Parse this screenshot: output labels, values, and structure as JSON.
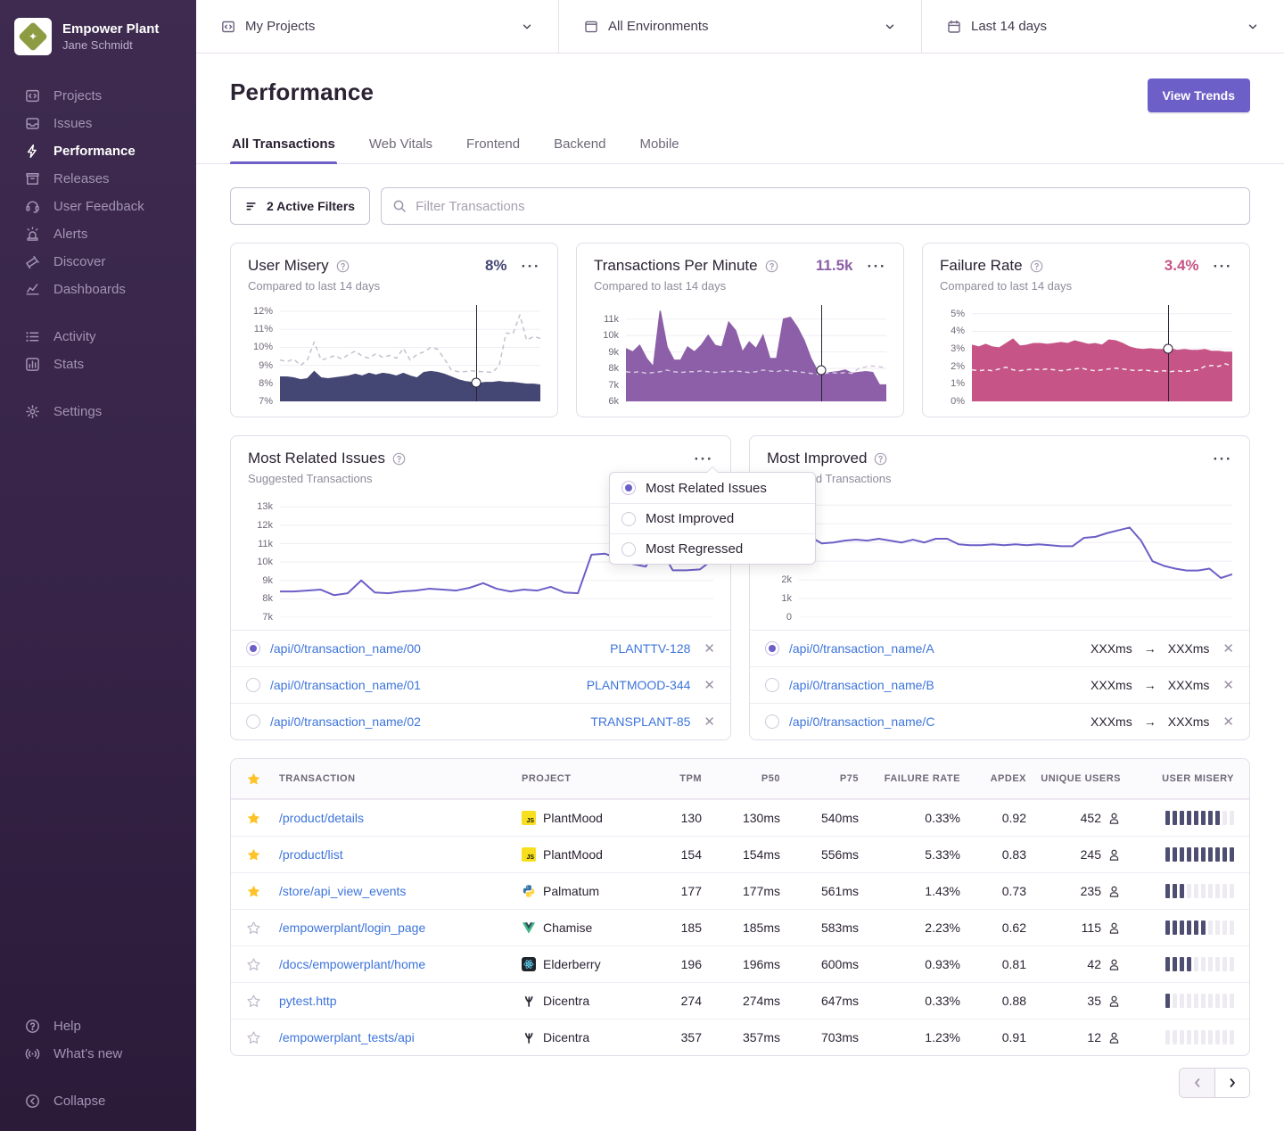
{
  "sidebar": {
    "org": "Empower Plant",
    "user": "Jane Schmidt",
    "sections": [
      [
        {
          "id": "projects",
          "label": "Projects"
        },
        {
          "id": "issues",
          "label": "Issues"
        },
        {
          "id": "performance",
          "label": "Performance",
          "active": true
        },
        {
          "id": "releases",
          "label": "Releases"
        },
        {
          "id": "feedback",
          "label": "User Feedback"
        },
        {
          "id": "alerts",
          "label": "Alerts"
        },
        {
          "id": "discover",
          "label": "Discover"
        },
        {
          "id": "dashboards",
          "label": "Dashboards"
        }
      ],
      [
        {
          "id": "activity",
          "label": "Activity"
        },
        {
          "id": "stats",
          "label": "Stats"
        }
      ],
      [
        {
          "id": "settings",
          "label": "Settings"
        }
      ]
    ],
    "footer": [
      {
        "id": "help",
        "label": "Help"
      },
      {
        "id": "whatsnew",
        "label": "What’s new"
      }
    ],
    "collapse": {
      "id": "collapse",
      "label": "Collapse"
    }
  },
  "topbar": {
    "projects": "My Projects",
    "environments": "All Environments",
    "daterange": "Last 14 days"
  },
  "header": {
    "title": "Performance",
    "view_trends": "View Trends",
    "tabs": [
      "All Transactions",
      "Web Vitals",
      "Frontend",
      "Backend",
      "Mobile"
    ],
    "active_tab": 0
  },
  "filters": {
    "active_filters": "2 Active Filters",
    "search_placeholder": "Filter Transactions"
  },
  "colors": {
    "accent": "#6C5FC7",
    "link": "#3D74DB",
    "misery": "#444674",
    "tpm": "#8C5FA8",
    "failure": "#C65486",
    "mis_dash": "#C6C0CF",
    "tpm_dash": "#D3C7DE",
    "fail_dash": "#F3ECF2"
  },
  "chart_data": {
    "metric_cards": [
      {
        "type": "area",
        "title": "User Misery",
        "value": "8%",
        "subtitle": "Compared to last 14 days",
        "value_color": "#444674",
        "color": "#444674",
        "dash_color": "#C6C0CF",
        "ylim": [
          7,
          12.35
        ],
        "yticks": [
          {
            "v": 12,
            "l": "12%"
          },
          {
            "v": 11,
            "l": "11%"
          },
          {
            "v": 10,
            "l": "10%"
          },
          {
            "v": 9,
            "l": "9%"
          },
          {
            "v": 8,
            "l": "8%"
          },
          {
            "v": 7,
            "l": "7%"
          }
        ],
        "area": [
          8.35,
          8.35,
          8.3,
          8.2,
          8.25,
          8.65,
          8.3,
          8.25,
          8.3,
          8.35,
          8.4,
          8.5,
          8.4,
          8.55,
          8.45,
          8.55,
          8.5,
          8.4,
          8.55,
          8.4,
          8.3,
          8.6,
          8.65,
          8.6,
          8.5,
          8.35,
          8.2,
          8.1,
          8.05,
          8.0,
          8.05,
          8.05,
          8.1,
          8.05,
          8.05,
          8.0,
          7.95,
          7.95,
          7.9
        ],
        "dash": [
          9.3,
          9.2,
          9.35,
          9.0,
          9.3,
          10.3,
          9.3,
          9.4,
          9.55,
          9.35,
          9.6,
          9.8,
          9.5,
          9.4,
          9.65,
          9.45,
          9.55,
          9.4,
          9.95,
          9.3,
          9.6,
          9.75,
          10.0,
          9.9,
          9.35,
          8.75,
          8.65,
          8.65,
          8.7,
          8.65,
          8.65,
          8.6,
          9.0,
          10.8,
          10.75,
          11.8,
          10.4,
          10.6,
          10.5
        ],
        "marker": {
          "x": 0.755,
          "value": 8.05
        }
      },
      {
        "type": "area",
        "title": "Transactions Per Minute",
        "value": "11.5k",
        "subtitle": "Compared to last 14 days",
        "value_color": "#8C5FA8",
        "color": "#8C5FA8",
        "dash_color": "#D3C7DE",
        "ylim": [
          6,
          11.85
        ],
        "yticks": [
          {
            "v": 11,
            "l": "11k"
          },
          {
            "v": 10,
            "l": "10k"
          },
          {
            "v": 9,
            "l": "9k"
          },
          {
            "v": 8,
            "l": "8k"
          },
          {
            "v": 7,
            "l": "7k"
          },
          {
            "v": 6,
            "l": "6k"
          }
        ],
        "area": [
          9.2,
          9.0,
          9.4,
          8.6,
          8.1,
          11.5,
          9.3,
          8.5,
          8.5,
          9.3,
          9.0,
          9.4,
          10.0,
          9.4,
          9.3,
          10.8,
          10.3,
          9.0,
          9.6,
          9.2,
          10.0,
          8.6,
          8.6,
          11.0,
          11.1,
          10.5,
          9.7,
          8.6,
          7.8,
          7.7,
          7.75,
          7.8,
          7.9,
          7.7,
          7.75,
          7.8,
          7.75,
          7.0,
          7.0
        ],
        "dash": [
          7.8,
          7.75,
          7.8,
          7.7,
          7.75,
          7.8,
          7.9,
          7.8,
          7.75,
          7.8,
          7.8,
          7.85,
          7.8,
          7.75,
          7.8,
          7.8,
          7.85,
          7.8,
          7.75,
          7.8,
          7.9,
          7.85,
          7.8,
          7.9,
          7.85,
          7.8,
          7.75,
          7.7,
          7.65,
          7.7,
          7.75,
          7.7,
          7.75,
          7.7,
          8.0,
          8.1,
          8.15,
          8.1,
          8.05
        ],
        "marker": {
          "x": 0.75,
          "value": 7.9
        }
      },
      {
        "type": "area",
        "title": "Failure Rate",
        "value": "3.4%",
        "subtitle": "Compared to last 14 days",
        "value_color": "#C65486",
        "color": "#C65486",
        "dash_color": "#F3ECF2",
        "ylim": [
          0,
          5.5
        ],
        "yticks": [
          {
            "v": 5,
            "l": "5%"
          },
          {
            "v": 4,
            "l": "4%"
          },
          {
            "v": 3,
            "l": "3%"
          },
          {
            "v": 2,
            "l": "2%"
          },
          {
            "v": 1,
            "l": "1%"
          },
          {
            "v": 0,
            "l": "0%"
          }
        ],
        "area": [
          3.2,
          3.1,
          3.25,
          3.1,
          3.05,
          3.3,
          3.55,
          3.15,
          3.2,
          3.3,
          3.3,
          3.25,
          3.3,
          3.35,
          3.3,
          3.45,
          3.35,
          3.25,
          3.3,
          3.2,
          3.5,
          3.45,
          3.3,
          3.1,
          3.0,
          2.95,
          3.0,
          2.95,
          2.95,
          3.0,
          2.9,
          2.95,
          2.9,
          2.9,
          2.95,
          2.85,
          2.85,
          2.8,
          2.8
        ],
        "dash": [
          1.8,
          1.75,
          1.8,
          1.75,
          1.85,
          1.95,
          1.8,
          1.75,
          1.8,
          1.85,
          1.8,
          1.85,
          1.8,
          1.75,
          1.8,
          1.85,
          1.9,
          1.8,
          1.75,
          1.8,
          1.85,
          1.9,
          1.85,
          1.8,
          1.75,
          1.8,
          1.75,
          1.7,
          1.75,
          1.7,
          1.75,
          1.7,
          1.75,
          1.8,
          2.0,
          2.05,
          2.0,
          2.15,
          2.0
        ],
        "marker": {
          "x": 0.755,
          "value": 3.0
        }
      }
    ],
    "widget_cards": [
      {
        "type": "line",
        "title": "Most Related Issues",
        "subtitle": "Suggested Transactions",
        "color": "#6C5FC7",
        "ylim": [
          7,
          13.4
        ],
        "yticks": [
          {
            "v": 13,
            "l": "13k"
          },
          {
            "v": 12,
            "l": "12k"
          },
          {
            "v": 11,
            "l": "11k"
          },
          {
            "v": 10,
            "l": "10k"
          },
          {
            "v": 9,
            "l": "9k"
          },
          {
            "v": 8,
            "l": "8k"
          },
          {
            "v": 7,
            "l": "7k"
          }
        ],
        "line": [
          8.4,
          8.4,
          8.45,
          8.5,
          8.2,
          8.3,
          9.0,
          8.35,
          8.3,
          8.4,
          8.45,
          8.55,
          8.5,
          8.45,
          8.6,
          8.85,
          8.55,
          8.4,
          8.5,
          8.45,
          8.65,
          8.35,
          8.3,
          10.4,
          10.45,
          10.2,
          9.9,
          9.75,
          10.85,
          9.55,
          9.55,
          9.6,
          10.15
        ],
        "rows": [
          {
            "tx": "/api/0/transaction_name/00",
            "right": "PLANTTV-128",
            "selected": true
          },
          {
            "tx": "/api/0/transaction_name/01",
            "right": "PLANTMOOD-344",
            "selected": false
          },
          {
            "tx": "/api/0/transaction_name/02",
            "right": "TRANSPLANT-85",
            "selected": false
          }
        ]
      },
      {
        "type": "line",
        "title": "Most Improved",
        "subtitle": "Suggested Transactions",
        "color": "#6C5FC7",
        "ylim": [
          0,
          6.3
        ],
        "yticks": [
          {
            "v": 6,
            "l": ""
          },
          {
            "v": 5,
            "l": ""
          },
          {
            "v": 4,
            "l": ""
          },
          {
            "v": 3,
            "l": ""
          },
          {
            "v": 2,
            "l": "2k"
          },
          {
            "v": 1,
            "l": "1k"
          },
          {
            "v": 0,
            "l": "0"
          }
        ],
        "line": [
          3.9,
          4.3,
          3.95,
          4.0,
          4.1,
          4.15,
          4.1,
          4.2,
          4.1,
          4.0,
          4.15,
          4.0,
          4.2,
          4.2,
          3.9,
          3.85,
          3.85,
          3.9,
          3.85,
          3.9,
          3.85,
          3.9,
          3.85,
          3.8,
          3.8,
          4.25,
          4.3,
          4.5,
          4.65,
          4.8,
          4.1,
          3.0,
          2.75,
          2.6,
          2.5,
          2.5,
          2.6,
          2.1,
          2.3
        ],
        "rows": [
          {
            "tx": "/api/0/transaction_name/A",
            "from": "XXXms",
            "to": "XXXms",
            "selected": true
          },
          {
            "tx": "/api/0/transaction_name/B",
            "from": "XXXms",
            "to": "XXXms",
            "selected": false
          },
          {
            "tx": "/api/0/transaction_name/C",
            "from": "XXXms",
            "to": "XXXms",
            "selected": false
          }
        ]
      }
    ]
  },
  "dropdown": {
    "options": [
      "Most Related Issues",
      "Most Improved",
      "Most Regressed"
    ],
    "selected": 0
  },
  "table": {
    "columns": [
      "TRANSACTION",
      "PROJECT",
      "TPM",
      "P50",
      "P75",
      "FAILURE RATE",
      "APDEX",
      "UNIQUE USERS",
      "USER MISERY"
    ],
    "misery_segments": 10,
    "rows": [
      {
        "starred": true,
        "tx": "/product/details",
        "platform": "js",
        "project": "PlantMood",
        "tpm": "130",
        "p50": "130ms",
        "p75": "540ms",
        "failure_rate": "0.33%",
        "apdex": "0.92",
        "users": "452",
        "misery": 8
      },
      {
        "starred": true,
        "tx": "/product/list",
        "platform": "js",
        "project": "PlantMood",
        "tpm": "154",
        "p50": "154ms",
        "p75": "556ms",
        "failure_rate": "5.33%",
        "apdex": "0.83",
        "users": "245",
        "misery": 10
      },
      {
        "starred": true,
        "tx": "/store/api_view_events",
        "platform": "python",
        "project": "Palmatum",
        "tpm": "177",
        "p50": "177ms",
        "p75": "561ms",
        "failure_rate": "1.43%",
        "apdex": "0.73",
        "users": "235",
        "misery": 3
      },
      {
        "starred": false,
        "tx": "/empowerplant/login_page",
        "platform": "vue",
        "project": "Chamise",
        "tpm": "185",
        "p50": "185ms",
        "p75": "583ms",
        "failure_rate": "2.23%",
        "apdex": "0.62",
        "users": "115",
        "misery": 6
      },
      {
        "starred": false,
        "tx": "/docs/empowerplant/home",
        "platform": "react",
        "project": "Elderberry",
        "tpm": "196",
        "p50": "196ms",
        "p75": "600ms",
        "failure_rate": "0.93%",
        "apdex": "0.81",
        "users": "42",
        "misery": 4
      },
      {
        "starred": false,
        "tx": "pytest.http",
        "platform": "claw",
        "project": "Dicentra",
        "tpm": "274",
        "p50": "274ms",
        "p75": "647ms",
        "failure_rate": "0.33%",
        "apdex": "0.88",
        "users": "35",
        "misery": 1
      },
      {
        "starred": false,
        "tx": "/empowerplant_tests/api",
        "platform": "claw",
        "project": "Dicentra",
        "tpm": "357",
        "p50": "357ms",
        "p75": "703ms",
        "failure_rate": "1.23%",
        "apdex": "0.91",
        "users": "12",
        "misery": 0
      }
    ]
  }
}
